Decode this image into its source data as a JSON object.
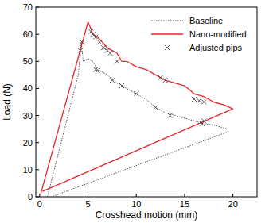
{
  "chart_data": {
    "type": "line",
    "x_label": "Crosshead motion (mm)",
    "y_label": "Load (N)",
    "xlim": [
      -0.4,
      22.5
    ],
    "ylim": [
      0,
      70
    ],
    "xticks": [
      0,
      5,
      10,
      15,
      20
    ],
    "yticks": [
      0,
      10,
      20,
      30,
      40,
      50,
      60,
      70
    ],
    "legend": "upper right",
    "series": [
      {
        "name": "Baseline",
        "type": "line",
        "color": "#555555",
        "line_style": "dotted",
        "x": [
          0.8,
          2.5,
          4.0,
          4.3,
          4.5,
          5.0,
          5.5,
          6.0,
          6.5,
          7.0,
          8.0,
          9.0,
          10.0,
          11.0,
          12.0,
          13.0,
          14.0,
          15.0,
          16.0,
          17.0,
          18.0,
          19.5,
          19.5,
          1.2
        ],
        "values": [
          0,
          24,
          45,
          57,
          50,
          51,
          50,
          47,
          46,
          45,
          42,
          40,
          38,
          36,
          33,
          31,
          30,
          29,
          28,
          27,
          26.5,
          25,
          24,
          0
        ]
      },
      {
        "name": "Nano-modified",
        "type": "line",
        "color": "#e8262a",
        "line_style": "solid",
        "x": [
          0.1,
          5.0,
          5.3,
          5.5,
          6.0,
          6.5,
          7.0,
          7.5,
          8.0,
          8.5,
          9.0,
          10.0,
          11.0,
          12.0,
          12.5,
          13.0,
          14.0,
          15.0,
          16.0,
          17.0,
          18.0,
          19.0,
          20.0,
          0.3
        ],
        "values": [
          1,
          64.5,
          62,
          60,
          59,
          57,
          55,
          54,
          53,
          50,
          50,
          48,
          47,
          45,
          44,
          43,
          42,
          41,
          38,
          37,
          35,
          34,
          32.5,
          2
        ]
      },
      {
        "name": "Adjusted pips",
        "type": "scatter",
        "color": "#444444",
        "marker": "x",
        "x": [
          4.2,
          4.4,
          5.3,
          5.5,
          5.8,
          6.2,
          6.6,
          7.0,
          7.3,
          8.0,
          12.5,
          13.0,
          16.0,
          16.5,
          17.0,
          5.8,
          6.0,
          7.5,
          8.5,
          10.0,
          12.0,
          13.5,
          16.8,
          17.0
        ],
        "values": [
          54,
          57,
          61,
          60,
          59,
          57,
          55,
          54,
          53,
          50,
          44,
          43,
          36,
          35.5,
          35,
          47,
          46.5,
          43,
          41,
          38,
          33,
          30,
          27,
          28
        ]
      }
    ]
  }
}
